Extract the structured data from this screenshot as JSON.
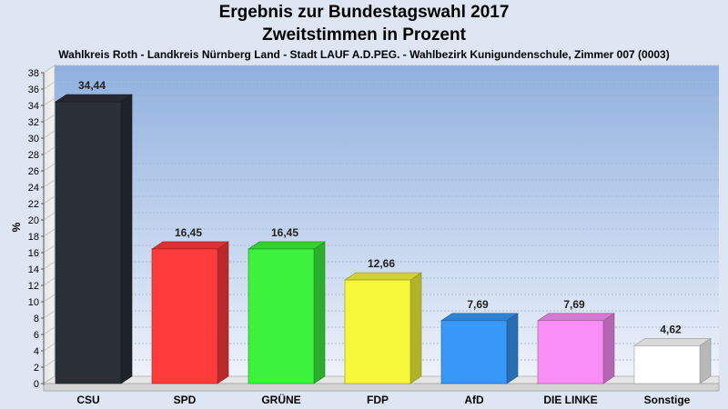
{
  "chart_data": {
    "type": "bar",
    "title": "Ergebnis zur Bundestagswahl 2017",
    "subtitle": "Zweitstimmen in Prozent",
    "caption": "Wahlkreis Roth - Landkreis Nürnberg Land - Stadt LAUF A.D.PEG. - Wahlbezirk Kunigundenschule, Zimmer 007 (0003)",
    "ylabel": "%",
    "xlabel": "",
    "ylim": [
      0,
      38
    ],
    "yticks": [
      "0",
      "2",
      "4",
      "6",
      "8",
      "10",
      "12",
      "14",
      "16",
      "18",
      "20",
      "22",
      "24",
      "26",
      "28",
      "30",
      "32",
      "34",
      "36",
      "38"
    ],
    "categories": [
      "CSU",
      "SPD",
      "GRÜNE",
      "FDP",
      "AfD",
      "DIE LINKE",
      "Sonstige"
    ],
    "values": [
      34.44,
      16.45,
      16.45,
      12.66,
      7.69,
      7.69,
      4.62
    ],
    "value_labels": [
      "34,44",
      "16,45",
      "16,45",
      "12,66",
      "7,69",
      "7,69",
      "4,62"
    ],
    "colors": [
      "#2b2f38",
      "#ff3b3b",
      "#3cf23c",
      "#f7f73a",
      "#3898f7",
      "#fa8ef7",
      "#ffffff"
    ],
    "grid": true,
    "legend": "none"
  }
}
